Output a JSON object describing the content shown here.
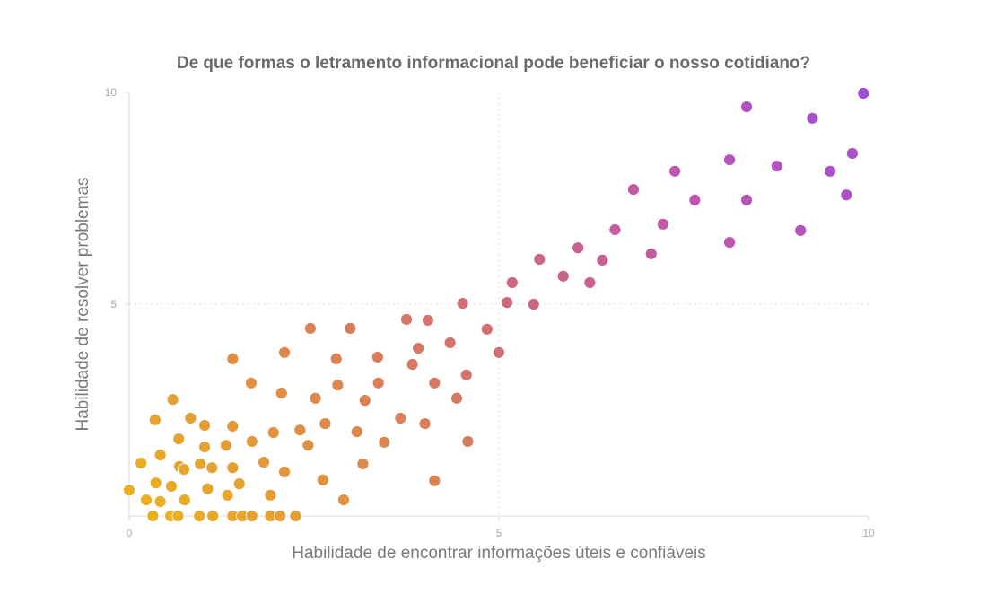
{
  "chart_data": {
    "type": "scatter",
    "title": "De que formas o letramento informacional pode beneficiar o nosso cotidiano?",
    "xlabel": "Habilidade de encontrar informações úteis e confiáveis",
    "ylabel": "Habilidade de resolver problemas",
    "xlim": [
      0,
      10
    ],
    "ylim": [
      0,
      10
    ],
    "xticks": [
      "0",
      "5",
      "10"
    ],
    "yticks": [
      "5",
      "10"
    ],
    "grid": "dotted lines at 5",
    "legend": "none",
    "color_gradient": [
      "#ebb51a",
      "#de8a4a",
      "#cf6a78",
      "#c055b0",
      "#9f4fd2"
    ],
    "points": [
      [
        0,
        0.61
      ],
      [
        0.16,
        1.25
      ],
      [
        0.23,
        0.38
      ],
      [
        0.32,
        0
      ],
      [
        0.36,
        0.78
      ],
      [
        0.35,
        2.27
      ],
      [
        0.42,
        1.44
      ],
      [
        0.42,
        0.34
      ],
      [
        0.56,
        0
      ],
      [
        0.57,
        0.7
      ],
      [
        0.59,
        2.75
      ],
      [
        0.66,
        0
      ],
      [
        0.67,
        1.82
      ],
      [
        0.68,
        1.17
      ],
      [
        0.74,
        1.1
      ],
      [
        0.75,
        0.38
      ],
      [
        0.83,
        2.31
      ],
      [
        0.95,
        0
      ],
      [
        0.96,
        1.23
      ],
      [
        1.02,
        2.14
      ],
      [
        1.02,
        1.63
      ],
      [
        1.06,
        0.64
      ],
      [
        1.12,
        1.14
      ],
      [
        1.13,
        0
      ],
      [
        1.31,
        1.67
      ],
      [
        1.33,
        0.49
      ],
      [
        1.4,
        3.71
      ],
      [
        1.4,
        2.12
      ],
      [
        1.4,
        1.14
      ],
      [
        1.4,
        0
      ],
      [
        1.49,
        0.76
      ],
      [
        1.53,
        0
      ],
      [
        1.65,
        3.14
      ],
      [
        1.66,
        0
      ],
      [
        1.66,
        1.76
      ],
      [
        1.82,
        1.27
      ],
      [
        1.91,
        0
      ],
      [
        1.91,
        0.49
      ],
      [
        1.95,
        1.97
      ],
      [
        2.04,
        0
      ],
      [
        2.06,
        2.9
      ],
      [
        2.1,
        3.86
      ],
      [
        2.1,
        1.04
      ],
      [
        2.25,
        0
      ],
      [
        2.31,
        2.03
      ],
      [
        2.42,
        1.67
      ],
      [
        2.45,
        4.43
      ],
      [
        2.52,
        2.78
      ],
      [
        2.62,
        0.85
      ],
      [
        2.65,
        2.18
      ],
      [
        2.8,
        3.71
      ],
      [
        2.82,
        3.09
      ],
      [
        2.9,
        0.38
      ],
      [
        2.99,
        4.43
      ],
      [
        3.08,
        1.99
      ],
      [
        3.16,
        1.23
      ],
      [
        3.19,
        2.73
      ],
      [
        3.36,
        3.75
      ],
      [
        3.37,
        3.14
      ],
      [
        3.45,
        1.74
      ],
      [
        3.67,
        2.31
      ],
      [
        3.75,
        4.64
      ],
      [
        3.83,
        3.58
      ],
      [
        3.91,
        3.96
      ],
      [
        4.0,
        2.18
      ],
      [
        4.04,
        4.62
      ],
      [
        4.13,
        3.14
      ],
      [
        4.13,
        0.83
      ],
      [
        4.34,
        4.09
      ],
      [
        4.43,
        2.78
      ],
      [
        4.51,
        5.02
      ],
      [
        4.56,
        3.33
      ],
      [
        4.58,
        1.76
      ],
      [
        4.84,
        4.41
      ],
      [
        5.0,
        3.86
      ],
      [
        5.11,
        5.04
      ],
      [
        5.18,
        5.51
      ],
      [
        5.47,
        5.0
      ],
      [
        5.55,
        6.06
      ],
      [
        5.87,
        5.66
      ],
      [
        6.07,
        6.33
      ],
      [
        6.23,
        5.51
      ],
      [
        6.4,
        6.04
      ],
      [
        6.57,
        6.76
      ],
      [
        6.82,
        7.71
      ],
      [
        7.06,
        6.19
      ],
      [
        7.22,
        6.89
      ],
      [
        7.38,
        8.14
      ],
      [
        7.65,
        7.46
      ],
      [
        8.12,
        8.41
      ],
      [
        8.12,
        6.46
      ],
      [
        8.35,
        9.66
      ],
      [
        8.35,
        7.46
      ],
      [
        8.76,
        8.26
      ],
      [
        9.08,
        6.74
      ],
      [
        9.24,
        9.39
      ],
      [
        9.48,
        8.14
      ],
      [
        9.7,
        7.58
      ],
      [
        9.78,
        8.56
      ],
      [
        9.93,
        9.98
      ]
    ]
  }
}
